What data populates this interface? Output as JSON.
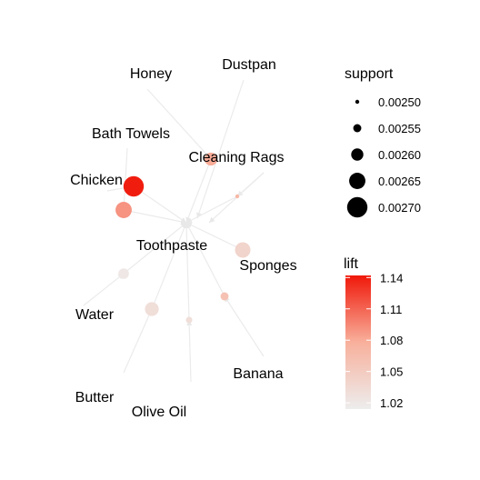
{
  "chart_data": {
    "type": "network",
    "center": "Toothpaste",
    "items": [
      {
        "label": "Honey",
        "support": null,
        "lift": null
      },
      {
        "label": "Dustpan",
        "support": null,
        "lift": null
      },
      {
        "label": "Bath Towels",
        "support": null,
        "lift": null
      },
      {
        "label": "Cleaning Rags",
        "support": null,
        "lift": null
      },
      {
        "label": "Chicken",
        "support": null,
        "lift": null
      },
      {
        "label": "Toothpaste",
        "support": null,
        "lift": null
      },
      {
        "label": "Sponges",
        "support": null,
        "lift": null
      },
      {
        "label": "Water",
        "support": null,
        "lift": null
      },
      {
        "label": "Butter",
        "support": null,
        "lift": null
      },
      {
        "label": "Olive Oil",
        "support": null,
        "lift": null
      },
      {
        "label": "Banana",
        "support": null,
        "lift": null
      }
    ],
    "rules": [
      {
        "support": 0.0027,
        "lift": 1.14
      },
      {
        "support": 0.00265,
        "lift": 1.09
      },
      {
        "support": 0.00261,
        "lift": 1.08
      },
      {
        "support": 0.0025,
        "lift": 1.07
      },
      {
        "support": 0.00264,
        "lift": 1.04
      },
      {
        "support": 0.00255,
        "lift": 1.06
      },
      {
        "support": 0.00262,
        "lift": 1.03
      },
      {
        "support": 0.00258,
        "lift": 1.02
      },
      {
        "support": 0.00253,
        "lift": 1.03
      }
    ],
    "size_legend": {
      "title": "support",
      "values": [
        "0.00250",
        "0.00255",
        "0.00260",
        "0.00265",
        "0.00270"
      ]
    },
    "color_legend": {
      "title": "lift",
      "ticks": [
        "1.14",
        "1.11",
        "1.08",
        "1.05",
        "1.02"
      ],
      "range": [
        1.014,
        1.142
      ],
      "low_color": "#ededed",
      "high_color": "#f0180a"
    },
    "edge_color": "#ebebeb"
  }
}
